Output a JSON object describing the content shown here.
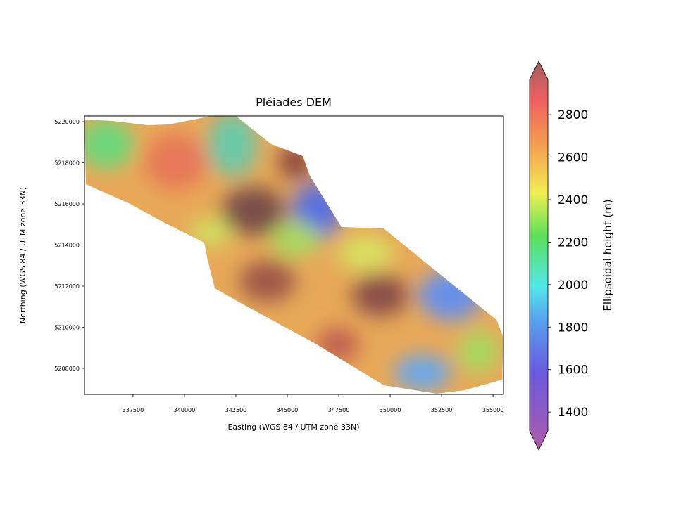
{
  "chart_data": {
    "type": "image",
    "title": "Pléiades DEM",
    "x_label": "Easting (WGS 84 / UTM zone 33N)",
    "y_label": "Northing (WGS 84 / UTM zone 33N)",
    "xlim": [
      335140,
      355510
    ],
    "xticks": [
      337500,
      340000,
      342500,
      345000,
      347500,
      350000,
      352500,
      355000
    ],
    "ylim": [
      5206735,
      5220275
    ],
    "yticks": [
      5208000,
      5210000,
      5212000,
      5214000,
      5216000,
      5218000,
      5220000
    ],
    "colorbar": {
      "label": "Ellipsoidal height (m)",
      "lim": [
        1311,
        2966
      ],
      "ticks": [
        1400,
        1600,
        1800,
        2000,
        2200,
        2400,
        2600,
        2800
      ]
    }
  }
}
